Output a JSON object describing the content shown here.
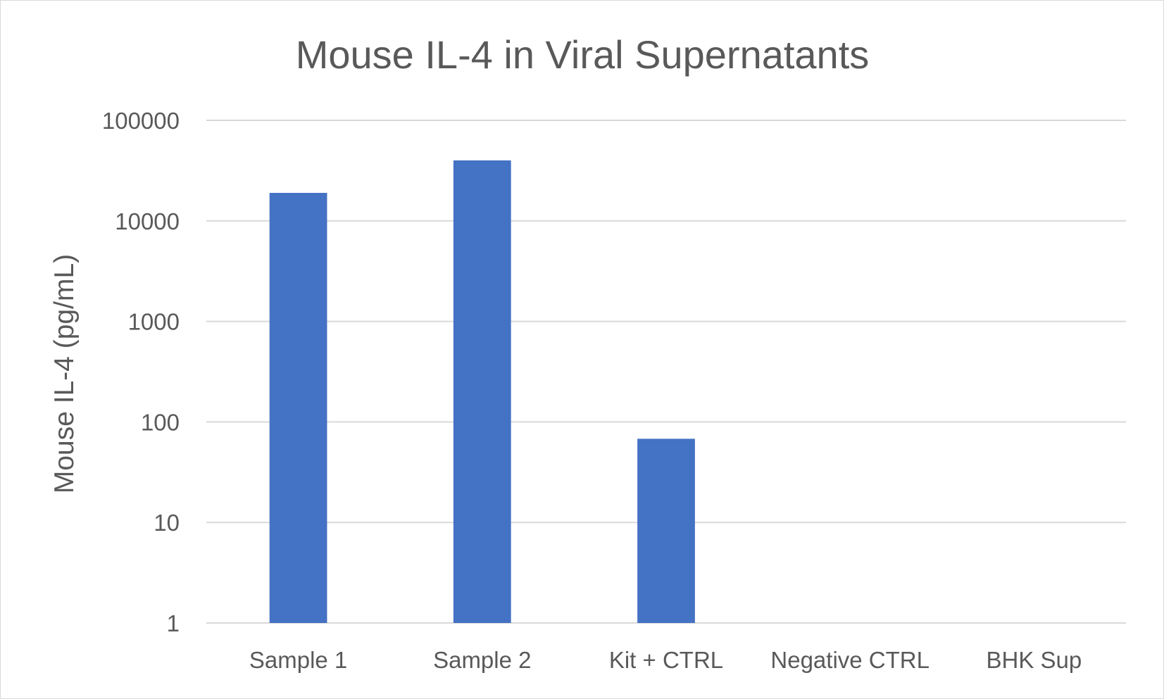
{
  "chart_data": {
    "type": "bar",
    "title": "Mouse IL-4 in Viral Supernatants",
    "ylabel": "Mouse IL-4 (pg/mL)",
    "xlabel": "",
    "y_scale": "log",
    "ylim": [
      1,
      100000
    ],
    "y_ticks": [
      1,
      10,
      100,
      1000,
      10000,
      100000
    ],
    "y_tick_labels": [
      "1",
      "10",
      "100",
      "1000",
      "10000",
      "100000"
    ],
    "categories": [
      "Sample 1",
      "Sample 2",
      "Kit + CTRL",
      "Negative CTRL",
      "BHK Sup"
    ],
    "values": [
      19000,
      40000,
      68,
      0,
      0
    ],
    "bar_color": "#4472c4",
    "grid": true,
    "legend": "none"
  }
}
